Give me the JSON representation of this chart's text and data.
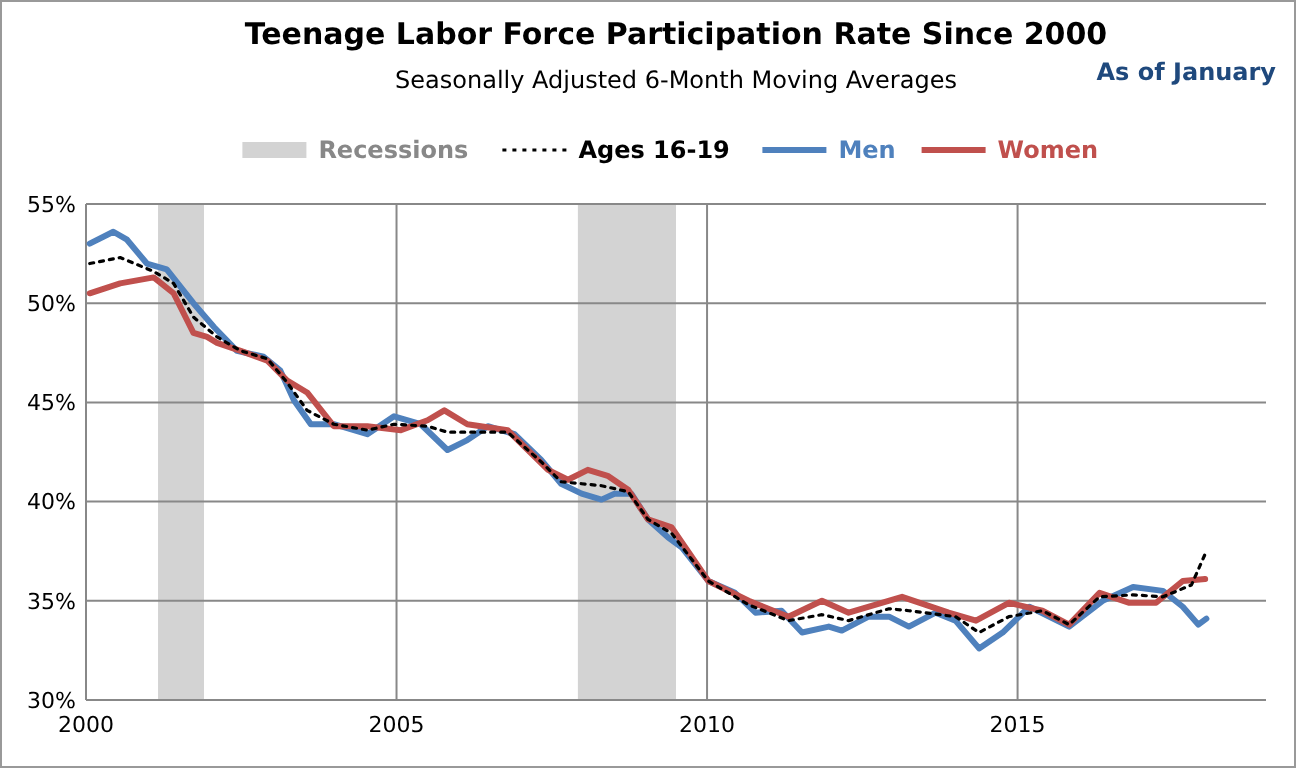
{
  "chart_data": {
    "type": "line",
    "title": "Teenage Labor Force Participation Rate Since 2000",
    "subtitle": "Seasonally Adjusted 6-Month  Moving Averages",
    "annotations": [
      "As of January"
    ],
    "xlim": [
      2000,
      2019
    ],
    "xticks": [
      2000,
      2005,
      2010,
      2015
    ],
    "ylim": [
      30,
      55
    ],
    "yticks": [
      {
        "value": 30,
        "label": "30%"
      },
      {
        "value": 35,
        "label": "35%"
      },
      {
        "value": 40,
        "label": "40%"
      },
      {
        "value": 45,
        "label": "45%"
      },
      {
        "value": 50,
        "label": "50%"
      },
      {
        "value": 55,
        "label": "55%"
      }
    ],
    "grid": true,
    "legend": "top",
    "bands": [
      {
        "axis": "x",
        "from": 2001.16,
        "to": 2001.9,
        "label": "Recessions",
        "color": "#d3d3d3"
      },
      {
        "axis": "x",
        "from": 2007.92,
        "to": 2009.5,
        "color": "#d3d3d3"
      }
    ],
    "series": [
      {
        "name": "Ages 16-19",
        "color": "#000000",
        "line_style": "dotted",
        "x": [
          2000.06,
          2000.55,
          2001.09,
          2001.41,
          2001.73,
          2002.11,
          2002.49,
          2002.92,
          2003.24,
          2003.56,
          2003.99,
          2004.53,
          2004.96,
          2005.5,
          2005.82,
          2006.14,
          2006.79,
          2007.33,
          2007.65,
          2007.98,
          2008.3,
          2008.73,
          2009.05,
          2009.43,
          2010.02,
          2010.67,
          2011.31,
          2011.85,
          2012.28,
          2012.93,
          2013.25,
          2014.0,
          2014.38,
          2014.86,
          2015.4,
          2015.83,
          2016.32,
          2016.86,
          2017.34,
          2017.8,
          2018.04
        ],
        "values": [
          52.0,
          52.3,
          51.6,
          51.0,
          49.3,
          48.3,
          47.6,
          47.2,
          46.0,
          44.6,
          43.9,
          43.6,
          43.9,
          43.8,
          43.5,
          43.5,
          43.5,
          42.0,
          41.0,
          40.9,
          40.8,
          40.5,
          39.1,
          38.4,
          36.0,
          34.8,
          34.0,
          34.3,
          34.0,
          34.6,
          34.5,
          34.2,
          33.4,
          34.2,
          34.5,
          33.8,
          35.2,
          35.3,
          35.2,
          35.8,
          37.5
        ]
      },
      {
        "name": "Men",
        "color": "#4f81bd",
        "x": [
          2000.06,
          2000.44,
          2000.66,
          2000.98,
          2001.3,
          2001.73,
          2002.06,
          2002.43,
          2002.86,
          2003.13,
          2003.35,
          2003.62,
          2003.99,
          2004.53,
          2004.96,
          2005.39,
          2005.82,
          2006.14,
          2006.47,
          2006.9,
          2007.33,
          2007.65,
          2007.98,
          2008.3,
          2008.51,
          2008.78,
          2009.05,
          2009.37,
          2009.59,
          2010.02,
          2010.45,
          2010.78,
          2011.2,
          2011.53,
          2011.96,
          2012.17,
          2012.6,
          2012.93,
          2013.25,
          2013.68,
          2014.0,
          2014.38,
          2014.76,
          2015.19,
          2015.83,
          2016.37,
          2016.86,
          2017.34,
          2017.66,
          2017.91,
          2018.04
        ],
        "values": [
          53.0,
          53.6,
          53.2,
          52.0,
          51.7,
          50.0,
          48.8,
          47.6,
          47.3,
          46.6,
          45.1,
          43.9,
          43.9,
          43.4,
          44.3,
          43.9,
          42.6,
          43.1,
          43.8,
          43.4,
          42.1,
          40.9,
          40.4,
          40.1,
          40.4,
          40.4,
          39.1,
          38.2,
          37.7,
          36.0,
          35.4,
          34.4,
          34.5,
          33.4,
          33.7,
          33.5,
          34.2,
          34.2,
          33.7,
          34.4,
          34.0,
          32.6,
          33.4,
          34.7,
          33.7,
          35.0,
          35.7,
          35.5,
          34.7,
          33.8,
          34.1
        ]
      },
      {
        "name": "Women",
        "color": "#c0504d",
        "x": [
          2000.06,
          2000.55,
          2001.09,
          2001.41,
          2001.73,
          2001.95,
          2002.11,
          2002.49,
          2002.92,
          2003.24,
          2003.56,
          2003.99,
          2004.53,
          2005.07,
          2005.5,
          2005.77,
          2006.14,
          2006.79,
          2007.44,
          2007.76,
          2008.08,
          2008.4,
          2008.73,
          2009.05,
          2009.43,
          2010.02,
          2010.67,
          2011.31,
          2011.85,
          2012.28,
          2013.14,
          2013.89,
          2014.33,
          2014.86,
          2015.4,
          2015.83,
          2016.32,
          2016.8,
          2017.23,
          2017.66,
          2018.02
        ],
        "values": [
          50.5,
          51.0,
          51.3,
          50.5,
          48.5,
          48.3,
          48.0,
          47.6,
          47.1,
          46.1,
          45.5,
          43.8,
          43.8,
          43.6,
          44.1,
          44.6,
          43.9,
          43.6,
          41.6,
          41.1,
          41.6,
          41.3,
          40.6,
          39.1,
          38.7,
          36.0,
          35.0,
          34.2,
          35.0,
          34.4,
          35.2,
          34.4,
          34.0,
          34.9,
          34.5,
          33.8,
          35.4,
          34.9,
          34.9,
          36.0,
          36.1
        ]
      }
    ]
  }
}
